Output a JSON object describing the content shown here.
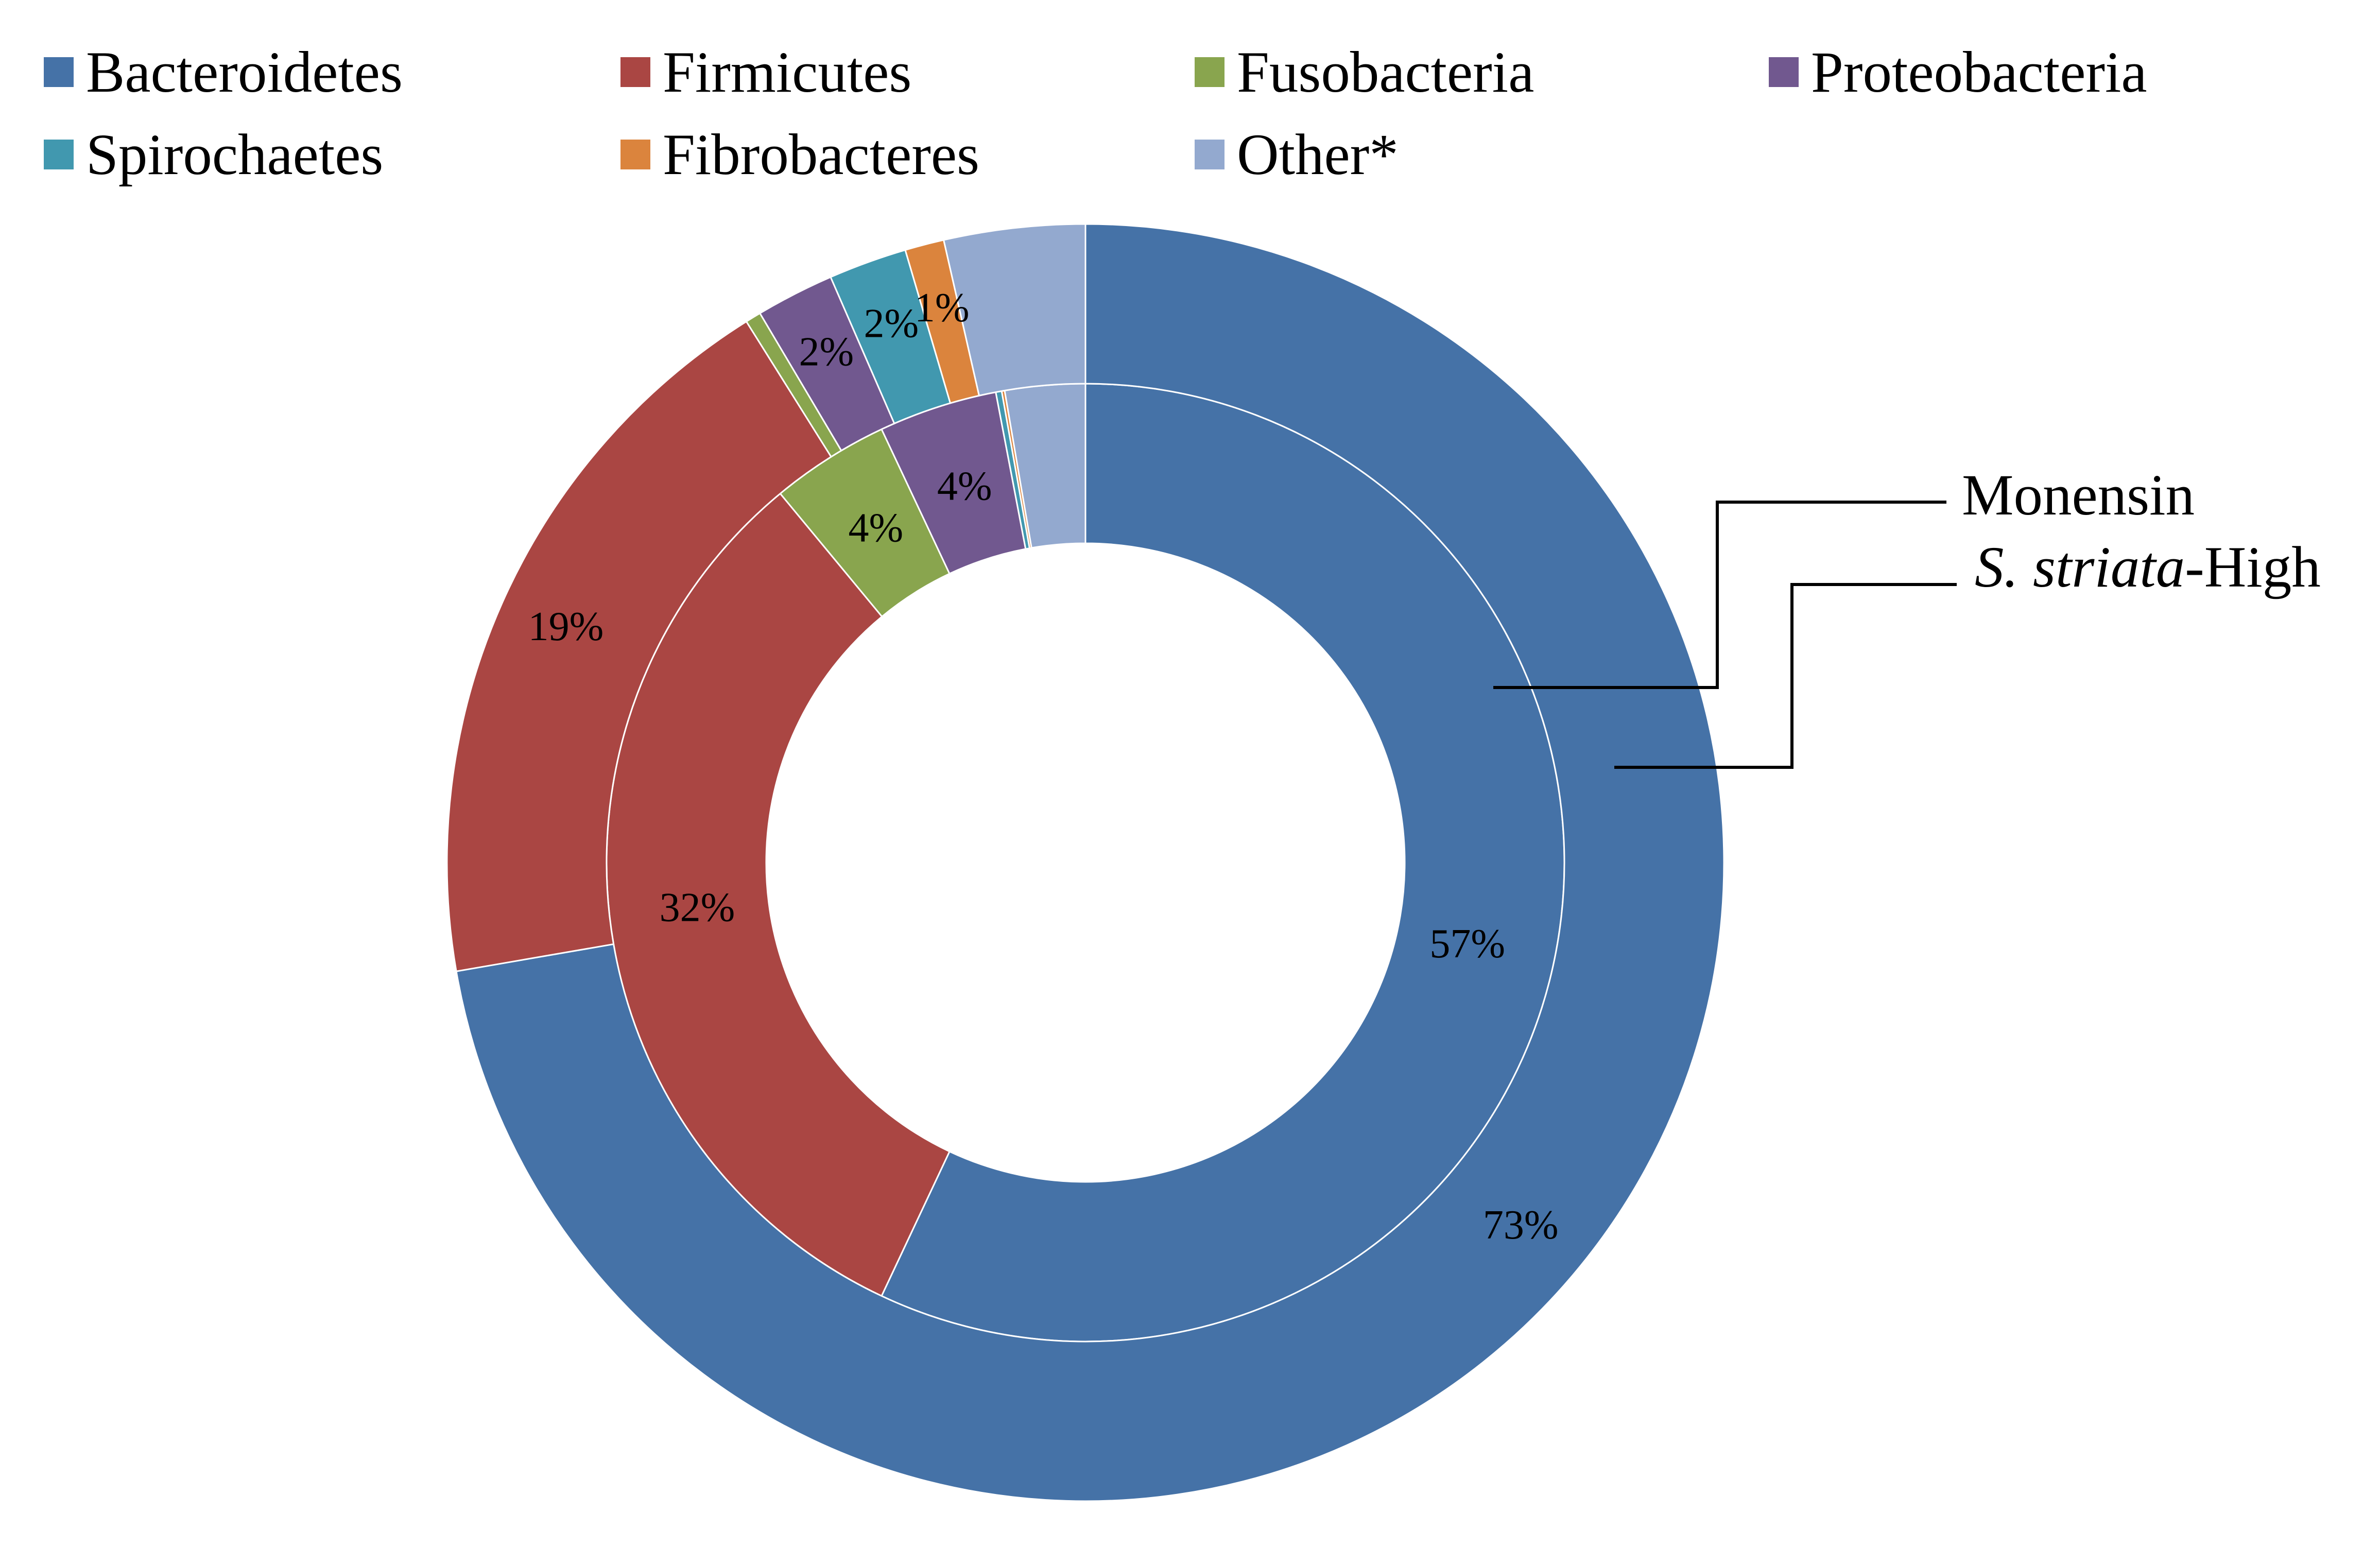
{
  "chart_data": {
    "type": "pie",
    "variant": "doughnut",
    "categories": [
      "Bacteroidetes",
      "Firmicutes",
      "Fusobacteria",
      "Proteobacteria",
      "Spirochaetes",
      "Fibrobacteres",
      "Other*"
    ],
    "colors": [
      "#4572A7",
      "#AA4643",
      "#89A54E",
      "#71588F",
      "#4198AF",
      "#DB843D",
      "#93A9CF"
    ],
    "series": [
      {
        "name": "Monensin",
        "ring": "inner",
        "values": [
          57,
          32,
          4,
          4,
          0.2,
          0.1,
          2.7
        ],
        "data_labels": [
          "57%",
          "32%",
          "4%",
          "4%",
          "",
          "",
          ""
        ]
      },
      {
        "name": "S. striata-High",
        "ring": "outer",
        "values": [
          73,
          19,
          0.4,
          2,
          2,
          1,
          3.6
        ],
        "data_labels": [
          "73%",
          "19%",
          "",
          "2%",
          "2%",
          "1%",
          ""
        ]
      }
    ],
    "legend_position": "top",
    "series_name_labels": {
      "monensin": "Monensin",
      "striata_italic": "S. striata",
      "striata_suffix": "-High"
    }
  }
}
